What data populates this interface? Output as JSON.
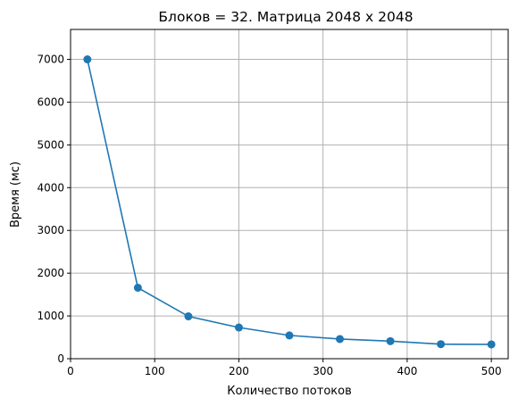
{
  "chart_data": {
    "type": "line",
    "title": "Блоков = 32. Матрица 2048 x 2048",
    "xlabel": "Количество потоков",
    "ylabel": "Время (мс)",
    "xlim": [
      0,
      520
    ],
    "ylim": [
      0,
      7700
    ],
    "xticks": [
      0,
      100,
      200,
      300,
      400,
      500
    ],
    "yticks": [
      0,
      1000,
      2000,
      3000,
      4000,
      5000,
      6000,
      7000
    ],
    "grid": true,
    "color": "#1f77b4",
    "series": [
      {
        "x": [
          20,
          80,
          140,
          200,
          260,
          320,
          380,
          440,
          500
        ],
        "y": [
          7000,
          1660,
          990,
          730,
          545,
          460,
          410,
          340,
          335
        ]
      }
    ]
  }
}
